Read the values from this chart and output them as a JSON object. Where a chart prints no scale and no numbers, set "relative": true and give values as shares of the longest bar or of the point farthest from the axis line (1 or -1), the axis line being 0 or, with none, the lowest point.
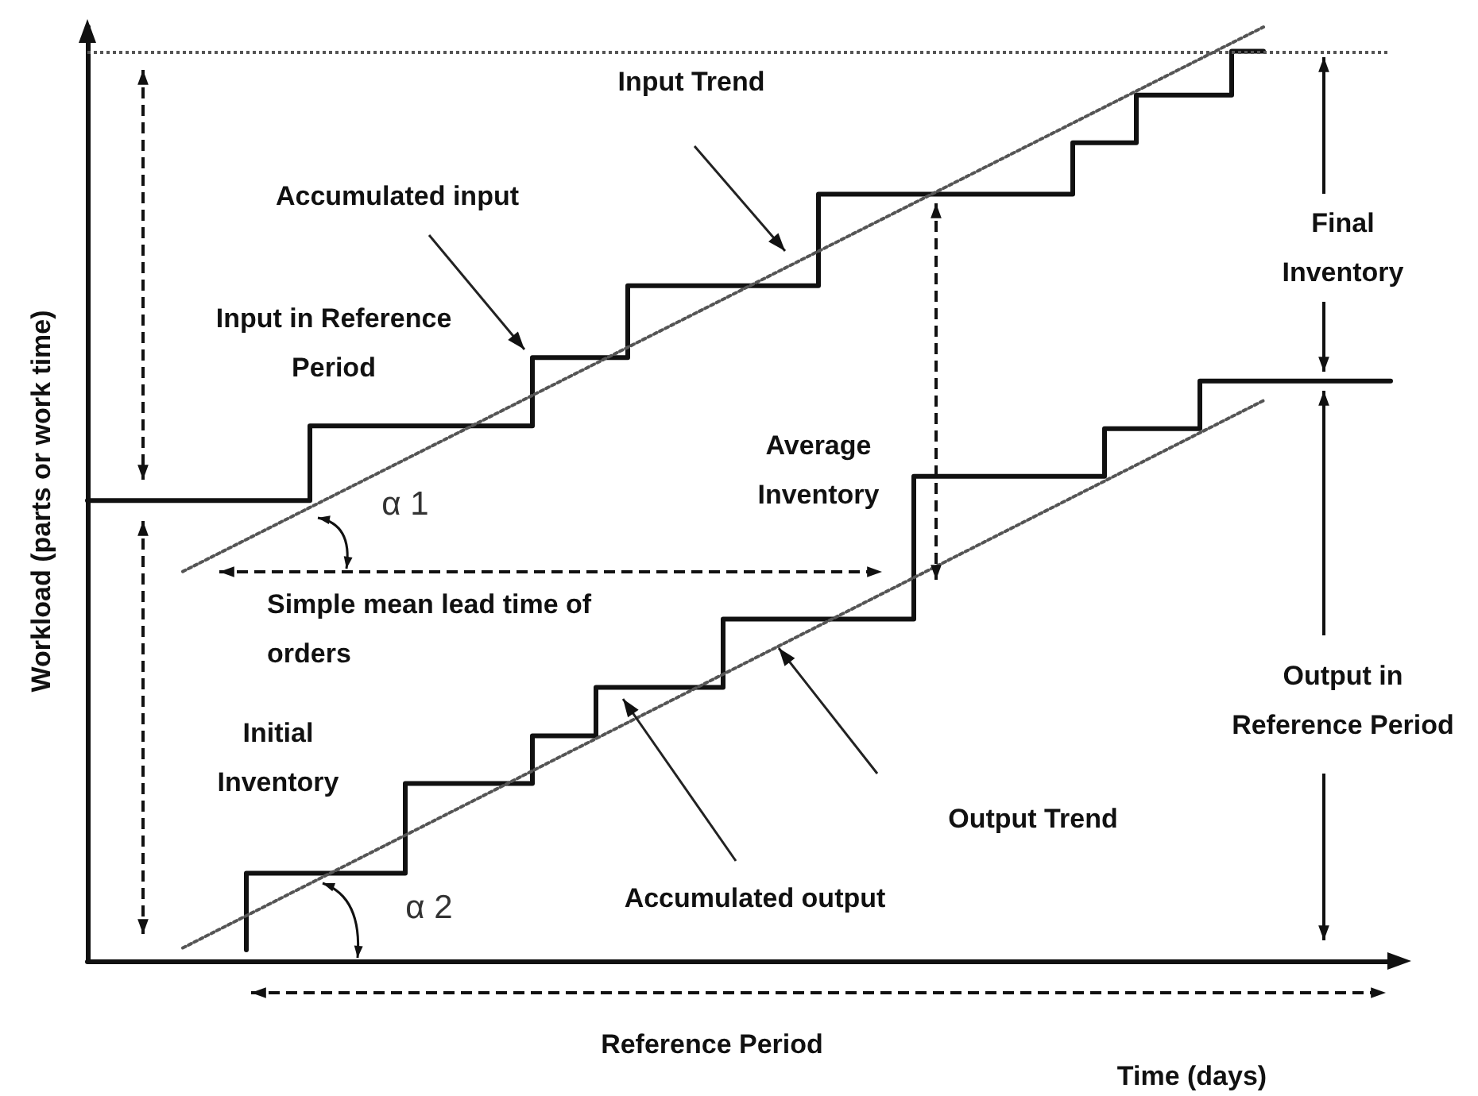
{
  "chart_data": {
    "type": "step",
    "relative": true,
    "xlabel": "Time (days)",
    "ylabel": "Workload (parts or work time)",
    "categories": [
      null,
      null,
      null,
      null,
      null,
      null,
      null,
      null,
      null,
      null,
      null,
      null,
      null,
      null,
      null,
      null,
      null,
      null,
      null,
      null,
      null,
      null,
      null,
      null,
      null,
      null,
      null,
      null,
      null,
      null,
      null,
      null,
      null,
      null,
      null,
      null,
      null,
      null,
      null,
      null,
      null,
      null
    ],
    "series": [
      {
        "color": "#111111",
        "values": [
          0.493,
          0.493,
          0.493,
          0.493,
          0.493,
          0.493,
          0.493,
          0.493,
          0.573,
          0.573,
          0.573,
          0.573,
          0.573,
          0.573,
          0.573,
          0.646,
          0.646,
          0.646,
          0.723,
          0.723,
          0.723,
          0.723,
          0.723,
          0.723,
          0.821,
          0.821,
          0.821,
          0.821,
          0.821,
          0.821,
          0.821,
          0.821,
          0.876,
          0.876,
          0.927,
          0.927,
          0.927,
          0.974,
          null,
          null,
          null,
          null
        ]
      },
      {
        "color": "#111111",
        "values": [
          null,
          null,
          null,
          null,
          null,
          0.012,
          0.094,
          0.094,
          0.094,
          0.094,
          0.094,
          0.19,
          0.19,
          0.19,
          0.19,
          0.241,
          0.241,
          0.293,
          0.293,
          0.293,
          0.293,
          0.366,
          0.366,
          0.366,
          0.366,
          0.366,
          0.366,
          0.519,
          0.519,
          0.519,
          0.519,
          0.519,
          0.519,
          0.57,
          0.57,
          0.57,
          0.621,
          0.621,
          0.621,
          0.621,
          0.621,
          0.621
        ]
      },
      {
        "type": "line",
        "line_style": "dotted",
        "color": "#555555",
        "values": [
          null,
          null,
          null,
          0.417,
          null,
          null,
          null,
          null,
          null,
          null,
          null,
          null,
          null,
          null,
          null,
          null,
          null,
          null,
          null,
          null,
          null,
          null,
          null,
          null,
          null,
          null,
          null,
          null,
          null,
          null,
          null,
          null,
          null,
          null,
          null,
          null,
          null,
          1,
          null,
          null,
          null,
          null
        ]
      },
      {
        "type": "line",
        "line_style": "dotted",
        "color": "#555555",
        "values": [
          null,
          null,
          null,
          0.014,
          null,
          null,
          null,
          null,
          null,
          null,
          null,
          null,
          null,
          null,
          null,
          null,
          null,
          null,
          null,
          null,
          null,
          null,
          null,
          null,
          null,
          null,
          null,
          null,
          null,
          null,
          null,
          null,
          null,
          null,
          null,
          null,
          null,
          0.6,
          null,
          null,
          null,
          null
        ]
      }
    ],
    "ref_lines": [
      {
        "axis": "y",
        "value": 0.974,
        "line_style": "dotted",
        "color": "#555555"
      }
    ],
    "annotations": [
      "Input Trend",
      "Accumulated input",
      "Input in Reference Period",
      "Average Inventory",
      "Final Inventory",
      "Simple mean lead time of orders",
      "Initial Inventory",
      "Output in Reference Period",
      "Output Trend",
      "Accumulated output",
      "α 1",
      "α 2",
      "Reference Period"
    ],
    "grid": false,
    "marker": "none"
  }
}
